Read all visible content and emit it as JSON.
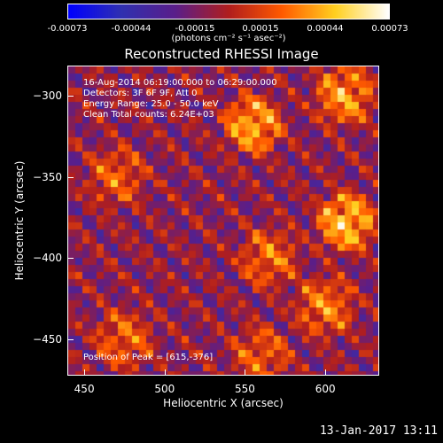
{
  "chart_data": {
    "type": "heatmap",
    "title": "Reconstructed RHESSI Image",
    "xlabel": "Heliocentric X (arcsec)",
    "ylabel": "Heliocentric Y (arcsec)",
    "xlim": [
      440,
      633
    ],
    "ylim": [
      -472,
      -282
    ],
    "x_ticks": [
      "450",
      "500",
      "550",
      "600"
    ],
    "y_ticks": [
      "-300",
      "-350",
      "-400",
      "-450"
    ],
    "colorbar": {
      "tick_labels": [
        "-0.00073",
        "-0.00044",
        "-0.00015",
        "0.00015",
        "0.00044",
        "0.00073"
      ],
      "units": "(photons cm⁻² s⁻¹ asec⁻²)",
      "range": [
        -0.00073,
        0.00073
      ],
      "colors": [
        "#0000ff",
        "#3030b0",
        "#5a1e8a",
        "#b01e1e",
        "#ff5a00",
        "#ffd020",
        "#ffffff"
      ]
    },
    "annotations": {
      "time": "16-Aug-2014 06:19:00.000 to 06:29:00.000",
      "detectors": "Detectors: 3F 6F 9F, Att 0",
      "energy": "Energy Range: 25.0 - 50.0 keV",
      "method": "Clean     Total counts: 6.24E+03",
      "peak": "Position of Peak = [615,-376]"
    },
    "sources": [
      {
        "x": 555,
        "y": -318,
        "peak": 0.00065
      },
      {
        "x": 613,
        "y": -378,
        "peak": 0.00073
      },
      {
        "x": 612,
        "y": -300,
        "peak": 0.0006
      },
      {
        "x": 600,
        "y": -430,
        "peak": 0.0005
      },
      {
        "x": 565,
        "y": -400,
        "peak": 0.00045
      },
      {
        "x": 470,
        "y": -350,
        "peak": 0.0004
      },
      {
        "x": 475,
        "y": -450,
        "peak": 0.00042
      },
      {
        "x": 560,
        "y": -460,
        "peak": 0.0004
      }
    ]
  },
  "footer": {
    "timestamp": "13-Jan-2017 13:11"
  }
}
